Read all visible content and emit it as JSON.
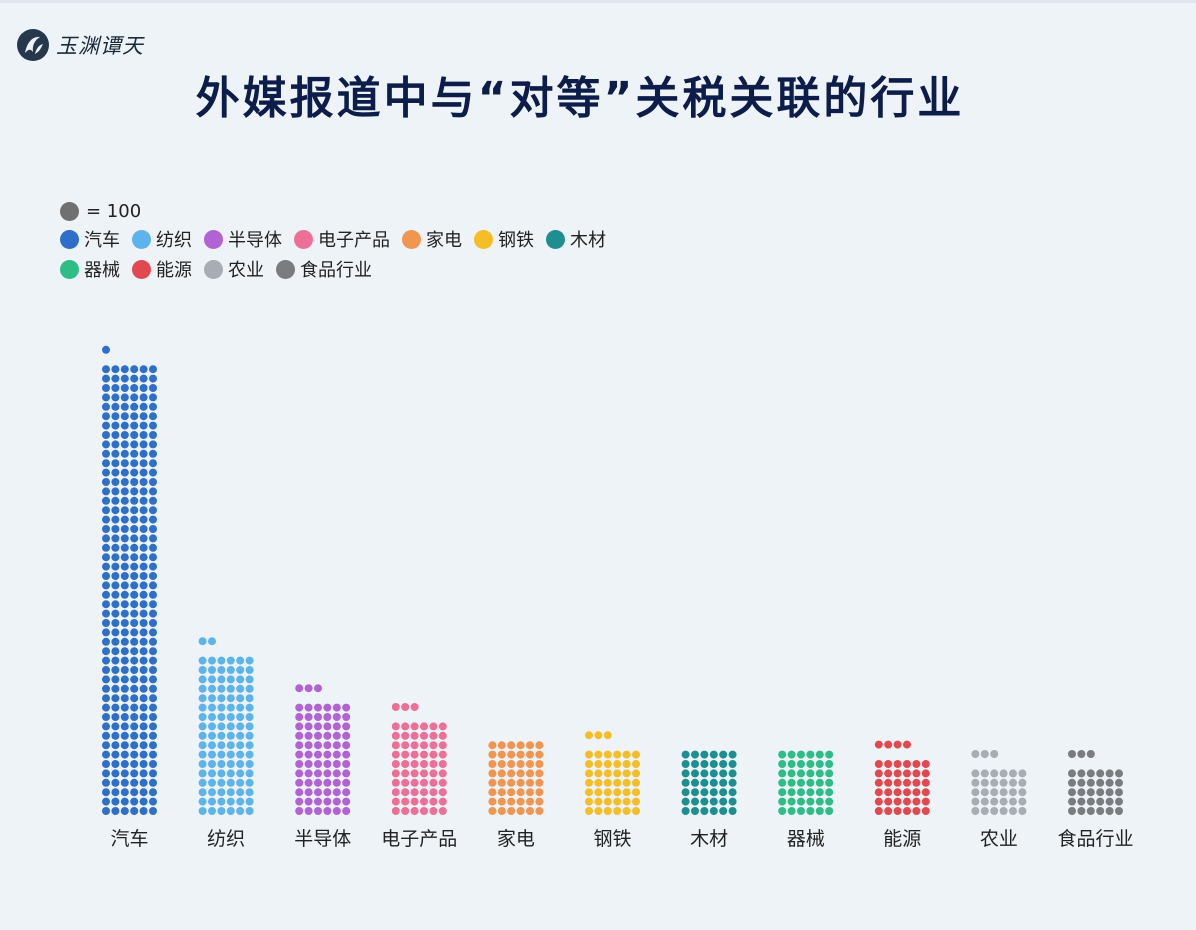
{
  "brand": {
    "name": "玉渊谭天",
    "logo_icon": "ink-swirl-logo"
  },
  "title": "外媒报道中与“对等”关税关联的行业",
  "legend": {
    "unit_label": "= 100",
    "unit_color": "#707070"
  },
  "chart_data": {
    "type": "waffle-bar",
    "title": "外媒报道中与“对等”关税关联的行业",
    "unit": "= 100",
    "dots_per_row": 6,
    "categories": [
      "汽车",
      "纺织",
      "半导体",
      "电子产品",
      "家电",
      "钢铁",
      "木材",
      "器械",
      "能源",
      "农业",
      "食品行业"
    ],
    "values": [
      289,
      104,
      75,
      63,
      48,
      45,
      42,
      42,
      40,
      33,
      33
    ],
    "colors": [
      "#2e6fca",
      "#5db4ec",
      "#b163d6",
      "#ee6f96",
      "#f29550",
      "#f5bd26",
      "#1d8f90",
      "#2ebd86",
      "#e2494e",
      "#a8adb3",
      "#7b7c7f"
    ],
    "legend_rows": [
      [
        0,
        1,
        2,
        3,
        4,
        5,
        6
      ],
      [
        7,
        8,
        9,
        10
      ]
    ],
    "xlabel": "",
    "ylabel": ""
  }
}
